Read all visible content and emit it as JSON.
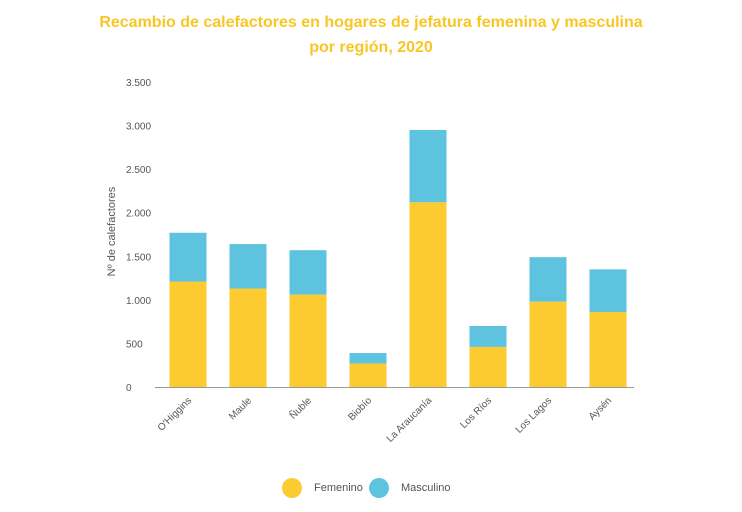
{
  "chart_data": {
    "type": "bar",
    "stacked": true,
    "title_lines": [
      "Recambio de calefactores en hogares de jefatura femenina y masculina",
      "por región, 2020"
    ],
    "ylabel": "Nº de calefactores",
    "xlabel": "",
    "ylim": [
      0,
      3500
    ],
    "yticks": [
      0,
      500,
      1000,
      1500,
      2000,
      2500,
      3000,
      3500
    ],
    "ytick_labels": [
      "0",
      "500",
      "1.000",
      "1.500",
      "2.000",
      "2.500",
      "3.000",
      "3.500"
    ],
    "grid": false,
    "legend_position": "bottom",
    "categories": [
      "O'Higgins",
      "Maule",
      "Ñuble",
      "Biobío",
      "La Araucanía",
      "Los Ríos",
      "Los Lagos",
      "Aysén"
    ],
    "series": [
      {
        "name": "Femenino",
        "color": "#FCCB2F",
        "values": [
          1210,
          1130,
          1060,
          270,
          2120,
          460,
          980,
          860
        ]
      },
      {
        "name": "Masculino",
        "color": "#5EC3DE",
        "values": [
          560,
          510,
          510,
          120,
          830,
          240,
          510,
          490
        ]
      }
    ]
  }
}
